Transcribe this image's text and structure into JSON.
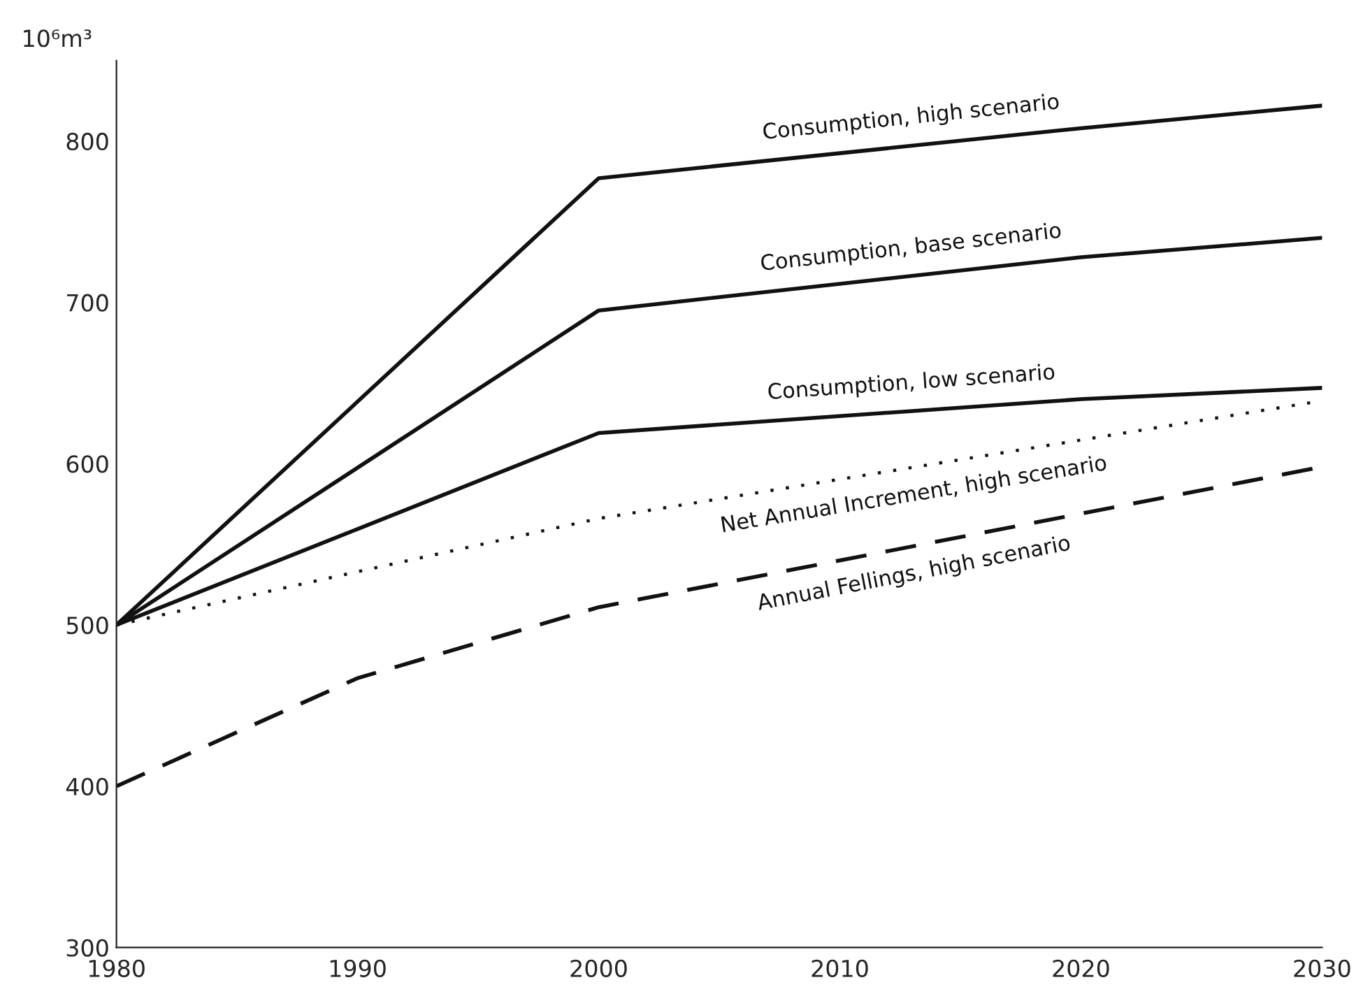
{
  "chart_data": {
    "type": "line",
    "ylabel": "10⁶m³",
    "xlim": [
      1980,
      2030
    ],
    "xticks": [
      1980,
      1990,
      2000,
      2010,
      2020,
      2030
    ],
    "ylim": [
      300,
      850
    ],
    "yticks": [
      300,
      400,
      500,
      600,
      700,
      800
    ],
    "grid": false,
    "legend": false,
    "marker": "none",
    "series": [
      {
        "name": "Consumption, high scenario",
        "color": "#111111",
        "line_style": "solid",
        "x": [
          1980,
          2000,
          2020,
          2030
        ],
        "values": [
          500,
          777,
          808,
          822
        ]
      },
      {
        "name": "Consumption, base scenario",
        "color": "#111111",
        "line_style": "solid",
        "x": [
          1980,
          2000,
          2020,
          2030
        ],
        "values": [
          500,
          695,
          728,
          740
        ]
      },
      {
        "name": "Consumption, low scenario",
        "color": "#111111",
        "line_style": "solid",
        "x": [
          1980,
          2000,
          2020,
          2030
        ],
        "values": [
          500,
          619,
          640,
          647
        ]
      },
      {
        "name": "Net Annual Increment, high scenario",
        "color": "#111111",
        "line_style": "dotted",
        "x": [
          1980,
          2000,
          2030
        ],
        "values": [
          500,
          566,
          639
        ]
      },
      {
        "name": "Annual Fellings, high scenario",
        "color": "#111111",
        "line_style": "dashed",
        "x": [
          1980,
          1990,
          2000,
          2010,
          2020,
          2030
        ],
        "values": [
          400,
          467,
          511,
          540,
          569,
          598
        ]
      }
    ]
  }
}
